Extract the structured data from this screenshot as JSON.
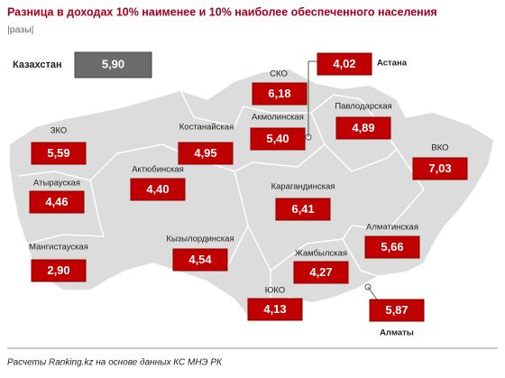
{
  "header": {
    "title": "Разница в доходах 10% наименее и 10% наиболее обеспеченного населения",
    "unit": "|разы|"
  },
  "national": {
    "name": "Казахстан",
    "value": 5.9,
    "value_label": "5,90"
  },
  "regions": [
    {
      "name": "ЗКО",
      "value": 5.59,
      "value_label": "5,59"
    },
    {
      "name": "Атырауская",
      "value": 4.46,
      "value_label": "4,46"
    },
    {
      "name": "Мангистауская",
      "value": 2.9,
      "value_label": "2,90"
    },
    {
      "name": "Актюбинская",
      "value": 4.4,
      "value_label": "4,40"
    },
    {
      "name": "Кызылординская",
      "value": 4.54,
      "value_label": "4,54"
    },
    {
      "name": "Костанайская",
      "value": 4.95,
      "value_label": "4,95"
    },
    {
      "name": "СКО",
      "value": 6.18,
      "value_label": "6,18"
    },
    {
      "name": "Акмолинская",
      "value": 5.4,
      "value_label": "5,40"
    },
    {
      "name": "Астана",
      "value": 4.02,
      "value_label": "4,02"
    },
    {
      "name": "Павлодарская",
      "value": 4.89,
      "value_label": "4,89"
    },
    {
      "name": "ВКО",
      "value": 7.03,
      "value_label": "7,03"
    },
    {
      "name": "Карагандинская",
      "value": 6.41,
      "value_label": "6,41"
    },
    {
      "name": "Алматинская",
      "value": 5.66,
      "value_label": "5,66"
    },
    {
      "name": "Жамбылская",
      "value": 4.27,
      "value_label": "4,27"
    },
    {
      "name": "ЮКО",
      "value": 4.13,
      "value_label": "4,13"
    },
    {
      "name": "Алматы",
      "value": 5.87,
      "value_label": "5,87"
    }
  ],
  "footer": "Расчеты Ranking.kz на основе данных КС МНЭ РК"
}
